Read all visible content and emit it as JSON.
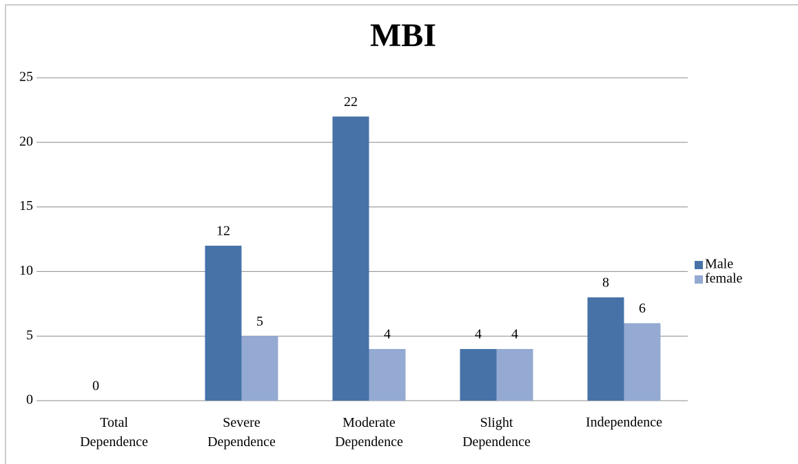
{
  "chart_data": {
    "type": "bar",
    "title": "MBI",
    "categories": [
      "Total Dependence",
      "Severe Dependence",
      "Moderate Dependence",
      "Slight Dependence",
      "Independence"
    ],
    "series": [
      {
        "name": "Male",
        "color": "#4672a8",
        "values": [
          0,
          12,
          22,
          4,
          8
        ]
      },
      {
        "name": "female",
        "color": "#94aad2",
        "values": [
          null,
          5,
          4,
          4,
          6
        ]
      }
    ],
    "ylim": [
      0,
      25
    ],
    "yticks": [
      0,
      5,
      10,
      15,
      20,
      25
    ],
    "grid": true,
    "legend": "right"
  }
}
